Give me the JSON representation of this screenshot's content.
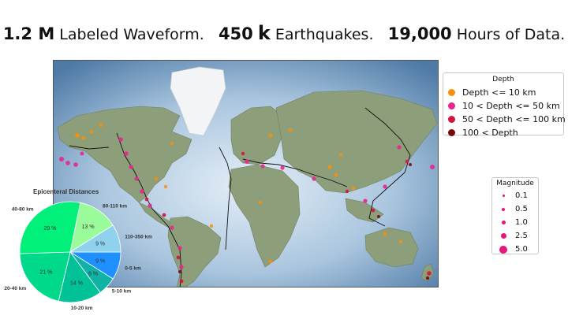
{
  "headline": {
    "a_num": "1.2 M",
    "a_text": " Labeled Waveform.",
    "b_num": "450",
    "b_unit": "k",
    "b_text": " Earthquakes.",
    "c_num": "19,000",
    "c_text": " Hours of Data."
  },
  "depth_legend": {
    "title": "Depth",
    "items": [
      {
        "label": "Depth <= 10 km",
        "color": "#f5900f"
      },
      {
        "label": "10 < Depth <= 50 km",
        "color": "#e8258f"
      },
      {
        "label": "50 < Depth <= 100 km",
        "color": "#d1163c"
      },
      {
        "label": "100 < Depth",
        "color": "#7a0a0a"
      }
    ]
  },
  "magnitude_legend": {
    "title": "Magnitude",
    "items": [
      {
        "label": "0.1",
        "value": 0.1
      },
      {
        "label": "0.5",
        "value": 0.5
      },
      {
        "label": "1.0",
        "value": 1.0
      },
      {
        "label": "2.5",
        "value": 2.5
      },
      {
        "label": "5.0",
        "value": 5.0
      }
    ]
  },
  "chart_data": {
    "type": "pie",
    "title": "Epicenteral Distances",
    "slices": [
      {
        "category": "0-5 km",
        "value": 9,
        "label": "9 %",
        "color": "#1e90ff"
      },
      {
        "category": "5-10 km",
        "value": 6,
        "label": "6 %",
        "color": "#10b2a6"
      },
      {
        "category": "10-20 km",
        "value": 14,
        "label": "14 %",
        "color": "#00c296"
      },
      {
        "category": "20-40 km",
        "value": 21,
        "label": "21 %",
        "color": "#00d98a"
      },
      {
        "category": "40-80 km",
        "value": 29,
        "label": "29 %",
        "color": "#00f07a"
      },
      {
        "category": "80-110 km",
        "value": 13,
        "label": "13 %",
        "color": "#9afb9a"
      },
      {
        "category": "110-350 km",
        "value": 9,
        "label": "9 %",
        "color": "#8ed2ee"
      }
    ]
  }
}
